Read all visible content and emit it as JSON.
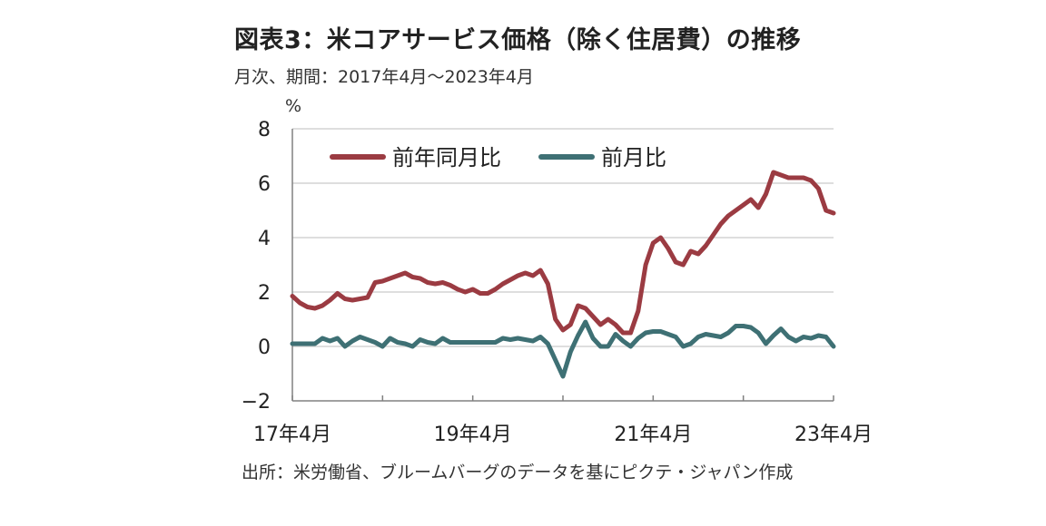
{
  "title": "図表3：米コアサービス価格（除く住居費）の推移",
  "subtitle": "月次、期間：2017年4月～2023年4月",
  "unit_label": "%",
  "source": "出所：米労働省、ブルームバーグのデータを基にピクテ・ジャパン作成",
  "colors": {
    "yoy": "#9b3b42",
    "mom": "#3e7074",
    "grid": "#d4d4d4",
    "axis": "#808080"
  },
  "chart_data": {
    "type": "line",
    "ylim": [
      -2,
      8
    ],
    "yticks": [
      -2,
      0,
      2,
      4,
      6,
      8
    ],
    "ytick_labels": [
      "−2",
      "0",
      "2",
      "4",
      "6",
      "8"
    ],
    "xlim": [
      "2017-04",
      "2023-04"
    ],
    "xticks": [
      {
        "date": "2017-04",
        "label": "17年4月"
      },
      {
        "date": "2019-04",
        "label": "19年4月"
      },
      {
        "date": "2021-04",
        "label": "21年4月"
      },
      {
        "date": "2023-04",
        "label": "23年4月"
      }
    ],
    "legend_position": "top-left",
    "grid": "horizontal",
    "start": "2017-04",
    "series": [
      {
        "name": "前年同月比",
        "color": "#9b3b42",
        "values": [
          1.85,
          1.6,
          1.45,
          1.4,
          1.5,
          1.7,
          1.95,
          1.75,
          1.7,
          1.75,
          1.8,
          2.35,
          2.4,
          2.5,
          2.6,
          2.7,
          2.55,
          2.5,
          2.35,
          2.3,
          2.35,
          2.25,
          2.1,
          2.0,
          2.1,
          1.95,
          1.95,
          2.1,
          2.3,
          2.45,
          2.6,
          2.7,
          2.6,
          2.8,
          2.3,
          1.0,
          0.6,
          0.8,
          1.5,
          1.4,
          1.1,
          0.8,
          1.0,
          0.8,
          0.5,
          0.5,
          1.3,
          3.0,
          3.8,
          4.0,
          3.6,
          3.1,
          3.0,
          3.5,
          3.4,
          3.7,
          4.1,
          4.5,
          4.8,
          5.0,
          5.2,
          5.4,
          5.1,
          5.6,
          6.4,
          6.3,
          6.2,
          6.2,
          6.2,
          6.1,
          5.8,
          5.0,
          4.9
        ]
      },
      {
        "name": "前月比",
        "color": "#3e7074",
        "values": [
          0.1,
          0.1,
          0.1,
          0.1,
          0.3,
          0.2,
          0.3,
          0.0,
          0.2,
          0.35,
          0.25,
          0.15,
          0.0,
          0.3,
          0.15,
          0.1,
          0.0,
          0.25,
          0.15,
          0.1,
          0.3,
          0.15,
          0.15,
          0.15,
          0.15,
          0.15,
          0.15,
          0.15,
          0.3,
          0.25,
          0.3,
          0.25,
          0.2,
          0.35,
          0.1,
          -0.5,
          -1.1,
          -0.2,
          0.4,
          0.9,
          0.3,
          0.0,
          0.0,
          0.45,
          0.2,
          0.0,
          0.3,
          0.5,
          0.55,
          0.55,
          0.45,
          0.35,
          0.0,
          0.1,
          0.35,
          0.45,
          0.4,
          0.35,
          0.5,
          0.75,
          0.75,
          0.7,
          0.5,
          0.1,
          0.4,
          0.65,
          0.35,
          0.2,
          0.35,
          0.3,
          0.4,
          0.35,
          0.0
        ]
      }
    ]
  }
}
